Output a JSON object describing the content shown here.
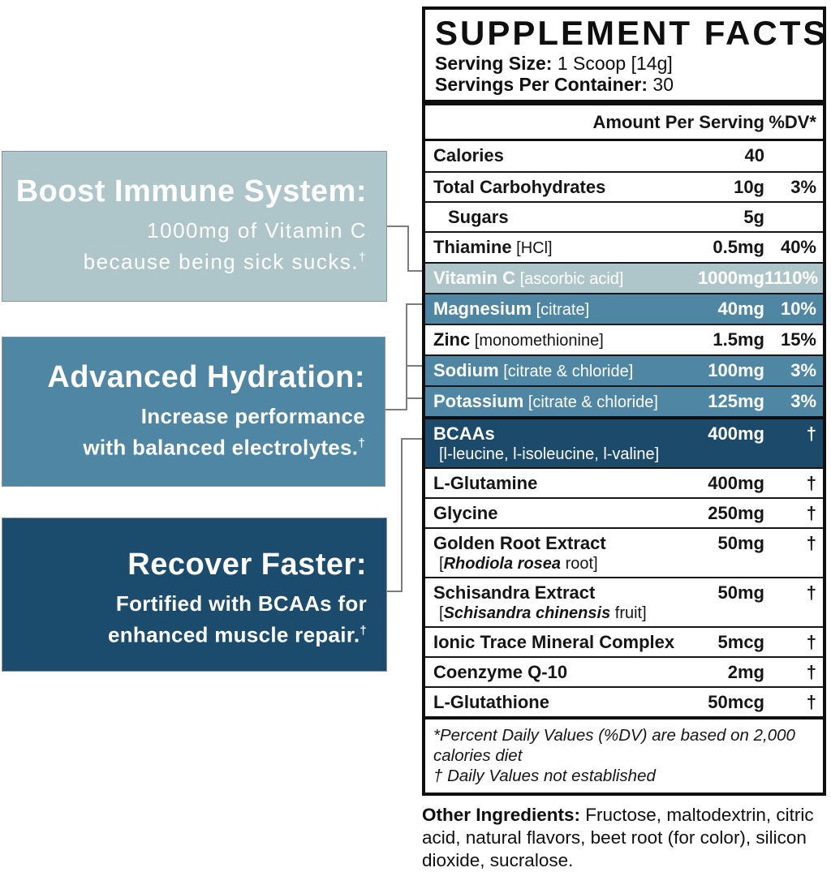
{
  "colors": {
    "light_blue": "#aec6ca",
    "steel_blue": "#4e86a3",
    "dark_navy": "#1c4c6d",
    "row_navy": "#1b4a6b",
    "connector_gray": "#7d7d7d",
    "border_black": "#0f0f0f"
  },
  "callouts": [
    {
      "title": "Boost Immune System:",
      "lines": [
        "1000mg of Vitamin C",
        "because being sick sucks."
      ],
      "sup": "†",
      "color": "#aec6ca"
    },
    {
      "title": "Advanced Hydration:",
      "lines": [
        "Increase performance",
        "with balanced electrolytes."
      ],
      "sup": "†",
      "color": "#4e86a3"
    },
    {
      "title": "Recover Faster:",
      "lines": [
        "Fortified with BCAAs for",
        "enhanced muscle repair."
      ],
      "sup": "†",
      "color": "#1c4c6d"
    }
  ],
  "panel": {
    "title": "SUPPLEMENT FACTS",
    "serving_size_label": "Serving Size:",
    "serving_size_value": " 1 Scoop [14g]",
    "servings_label": "Servings Per Container:",
    "servings_value": " 30",
    "col_amount": "Amount Per Serving",
    "col_dv": "%DV*",
    "rows": [
      {
        "name": "Calories",
        "amount": "40",
        "dv": ""
      },
      {
        "name": "Total Carbohydrates",
        "amount": "10g",
        "dv": "3%"
      },
      {
        "name": "Sugars",
        "amount": "5g",
        "dv": "",
        "indent": true
      },
      {
        "name": "Thiamine",
        "detail": " [HCl]",
        "amount": "0.5mg",
        "dv": "40%"
      },
      {
        "name": "Vitamin C",
        "detail": " [ascorbic acid]",
        "amount": "1000mg",
        "dv": "1110%",
        "highlight": "light"
      },
      {
        "name": "Magnesium",
        "detail": " [citrate]",
        "amount": "40mg",
        "dv": "10%",
        "highlight": "steel"
      },
      {
        "name": "Zinc",
        "detail": " [monomethionine]",
        "amount": "1.5mg",
        "dv": "15%"
      },
      {
        "name": "Sodium",
        "detail": " [citrate & chloride]",
        "amount": "100mg",
        "dv": "3%",
        "highlight": "steel"
      },
      {
        "name": "Potassium",
        "detail": " [citrate & chloride]",
        "amount": "125mg",
        "dv": "3%",
        "highlight": "steel"
      },
      {
        "name": "BCAAs",
        "amount": "400mg",
        "dv": "†",
        "highlight": "navy",
        "thick_top": true,
        "sub_parts": [
          {
            "t": "[l-leucine, l-isoleucine, l-valine]",
            "i": false
          }
        ]
      },
      {
        "name": "L-Glutamine",
        "amount": "400mg",
        "dv": "†"
      },
      {
        "name": "Glycine",
        "amount": "250mg",
        "dv": "†"
      },
      {
        "name": "Golden Root Extract",
        "amount": "50mg",
        "dv": "†",
        "sub_parts": [
          {
            "t": "[",
            "i": false
          },
          {
            "t": "Rhodiola rosea",
            "i": true
          },
          {
            "t": " root]",
            "i": false
          }
        ]
      },
      {
        "name": "Schisandra Extract",
        "amount": "50mg",
        "dv": "†",
        "sub_parts": [
          {
            "t": "[",
            "i": false
          },
          {
            "t": "Schisandra chinensis",
            "i": true
          },
          {
            "t": " fruit]",
            "i": false
          }
        ]
      },
      {
        "name": "Ionic Trace Mineral Complex",
        "amount": "5mcg",
        "dv": "†"
      },
      {
        "name": "Coenzyme Q-10",
        "amount": "2mg",
        "dv": "†"
      },
      {
        "name": "L-Glutathione",
        "amount": "50mcg",
        "dv": "†"
      }
    ],
    "footnotes": [
      "*Percent Daily Values (%DV) are based on 2,000 calories diet",
      "† Daily Values not established"
    ]
  },
  "other_ingredients": {
    "label": "Other Ingredients:",
    "text": " Fructose, maltodextrin, citric acid, natural flavors, beet root (for color), silicon dioxide, sucralose."
  }
}
